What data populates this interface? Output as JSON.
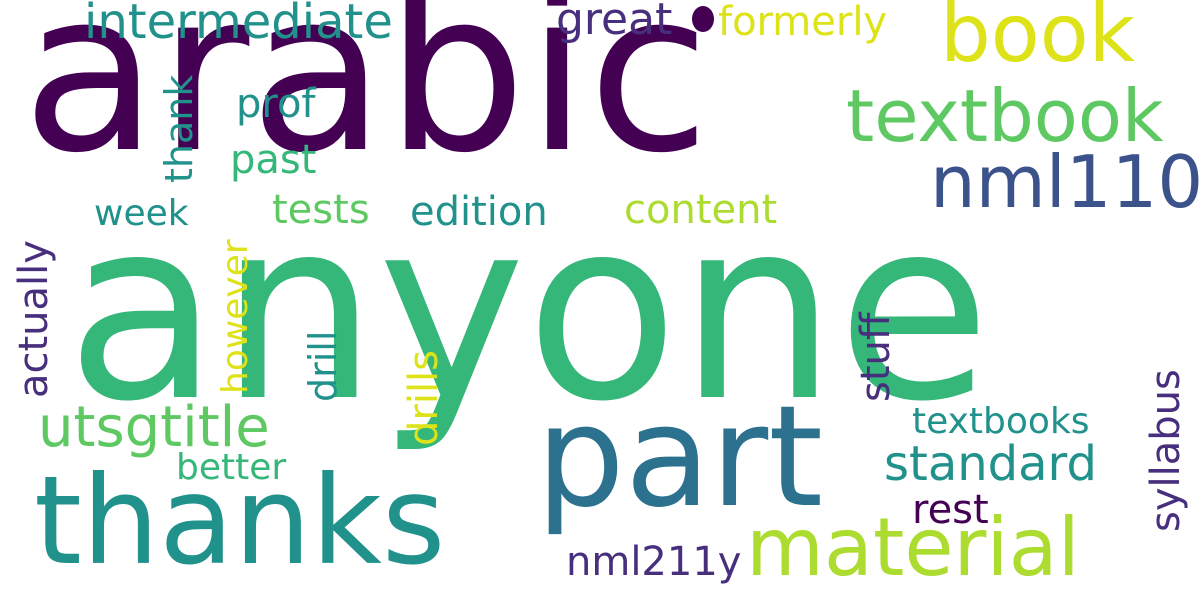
{
  "colors": {
    "dark_purple": "#440154",
    "indigo": "#3b528b",
    "purple": "#472f7d",
    "blue_teal": "#2c728e",
    "teal": "#21918c",
    "green_teal": "#28ae80",
    "green": "#35b779",
    "light_green": "#5ec962",
    "yellow_green": "#addc30",
    "yellow": "#dde318"
  },
  "words": {
    "arabic": "arabic",
    "anyone": "anyone",
    "thanks": "thanks",
    "part": "part",
    "material": "material",
    "book": "book",
    "textbook": "textbook",
    "nml110": "nml110",
    "intermediate": "intermediate",
    "utsgtitle": "utsgtitle",
    "standard": "standard",
    "great": "great",
    "formerly": "formerly",
    "prof": "prof",
    "thank": "thank",
    "past": "past",
    "week": "week",
    "tests": "tests",
    "edition": "edition",
    "content": "content",
    "actually": "actually",
    "however": "however",
    "drill": "drill",
    "drills": "drills",
    "stuff": "stuff",
    "syllabus": "syllabus",
    "textbooks": "textbooks",
    "better": "better",
    "rest": "rest",
    "nml211y": "nml211y"
  }
}
